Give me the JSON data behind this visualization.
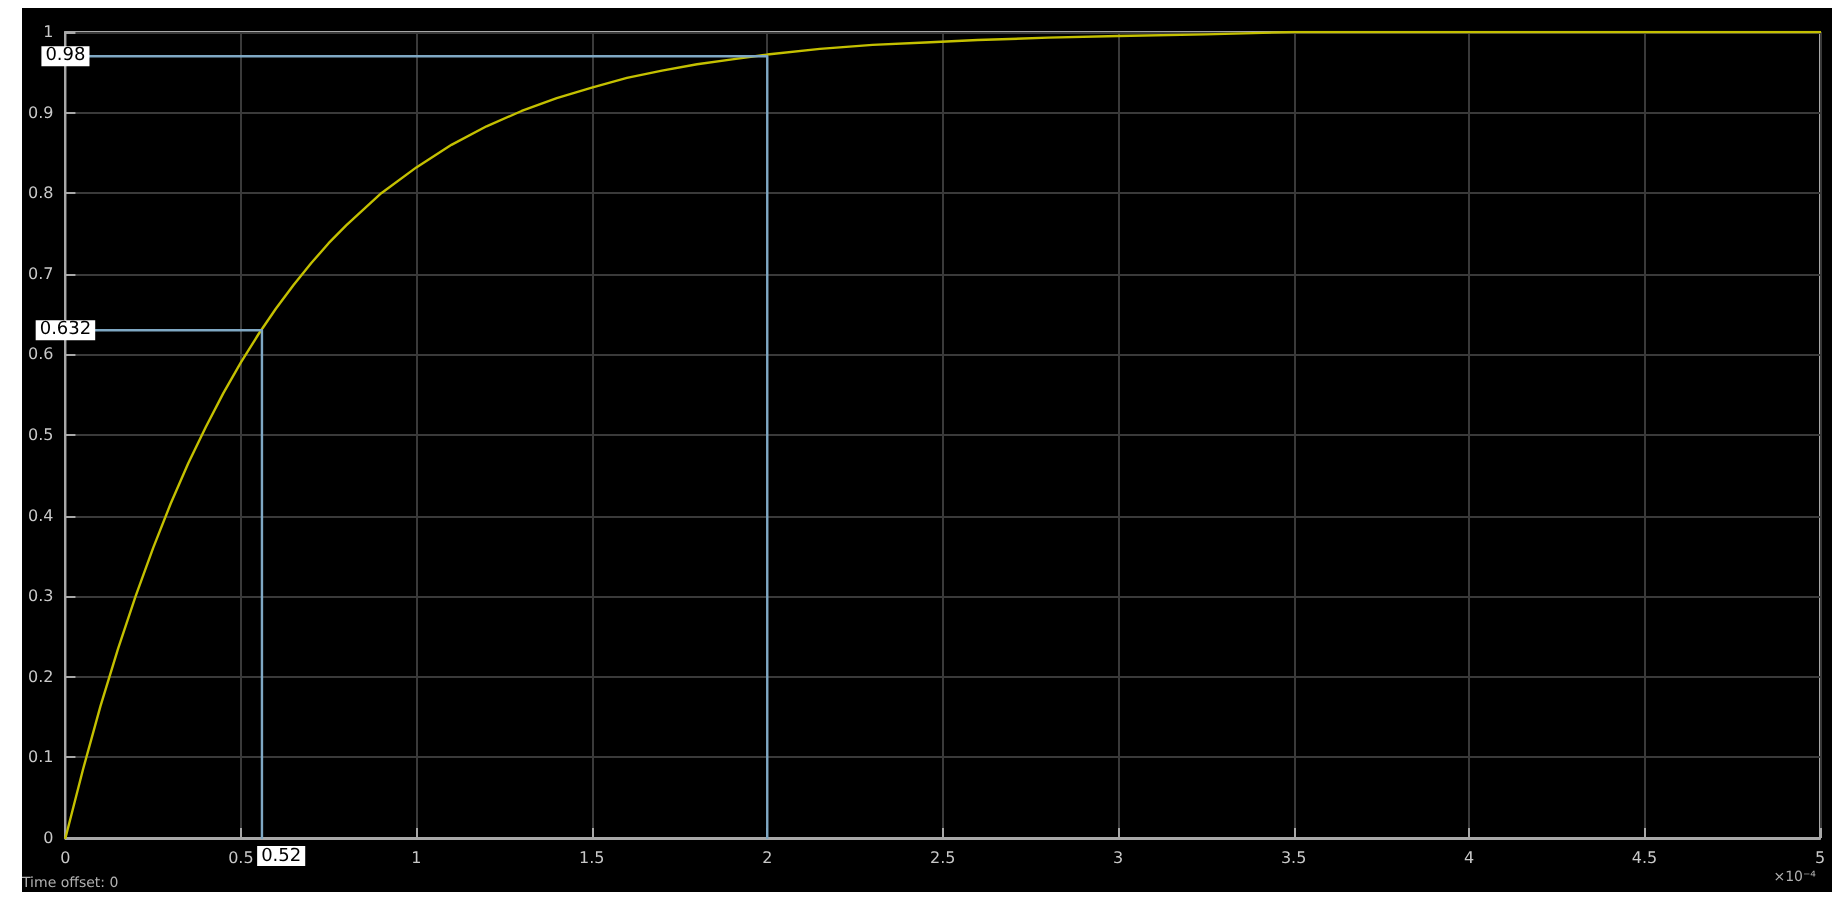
{
  "chart_data": {
    "type": "line",
    "xlim": [
      0,
      5
    ],
    "xticks": [
      0,
      0.5,
      1,
      1.5,
      2,
      2.5,
      3,
      3.5,
      4,
      4.5,
      5
    ],
    "ylim": [
      0,
      1
    ],
    "yticks": [
      0,
      0.1,
      0.2,
      0.3,
      0.4,
      0.5,
      0.6,
      0.7,
      0.8,
      0.9,
      1
    ],
    "grid": true,
    "marker": "none",
    "series": [
      {
        "color": "#c4c000",
        "x": [
          0,
          0.05,
          0.1,
          0.15,
          0.2,
          0.25,
          0.3,
          0.35,
          0.4,
          0.45,
          0.5,
          0.55,
          0.6,
          0.65,
          0.7,
          0.75,
          0.8,
          0.9,
          1,
          1.1,
          1.2,
          1.3,
          1.4,
          1.5,
          1.6,
          1.7,
          1.8,
          1.9,
          2,
          2.15,
          2.3,
          2.45,
          2.6,
          2.8,
          3,
          3.25,
          3.5,
          4,
          4.5,
          5
        ],
        "values": [
          0,
          0.085,
          0.164,
          0.235,
          0.3,
          0.36,
          0.415,
          0.465,
          0.51,
          0.552,
          0.59,
          0.625,
          0.657,
          0.686,
          0.713,
          0.738,
          0.76,
          0.8,
          0.832,
          0.86,
          0.883,
          0.902,
          0.918,
          0.931,
          0.943,
          0.952,
          0.96,
          0.966,
          0.972,
          0.979,
          0.984,
          0.987,
          0.99,
          0.993,
          0.995,
          0.997,
          1,
          1,
          1,
          1
        ]
      },
      {
        "color": "#7fa8c4",
        "x": [
          0,
          0.56,
          0.56
        ],
        "values": [
          0.63,
          0.63,
          0
        ]
      },
      {
        "color": "#7fa8c4",
        "x": [
          0,
          2,
          2
        ],
        "values": [
          0.97,
          0.97,
          0
        ]
      }
    ],
    "annotations": [
      {
        "text": "0.632",
        "y": 0.63
      },
      "0.52",
      {
        "text": "0.98",
        "y": 0.97
      },
      "Time offset: 0",
      "×10⁻⁴"
    ]
  }
}
